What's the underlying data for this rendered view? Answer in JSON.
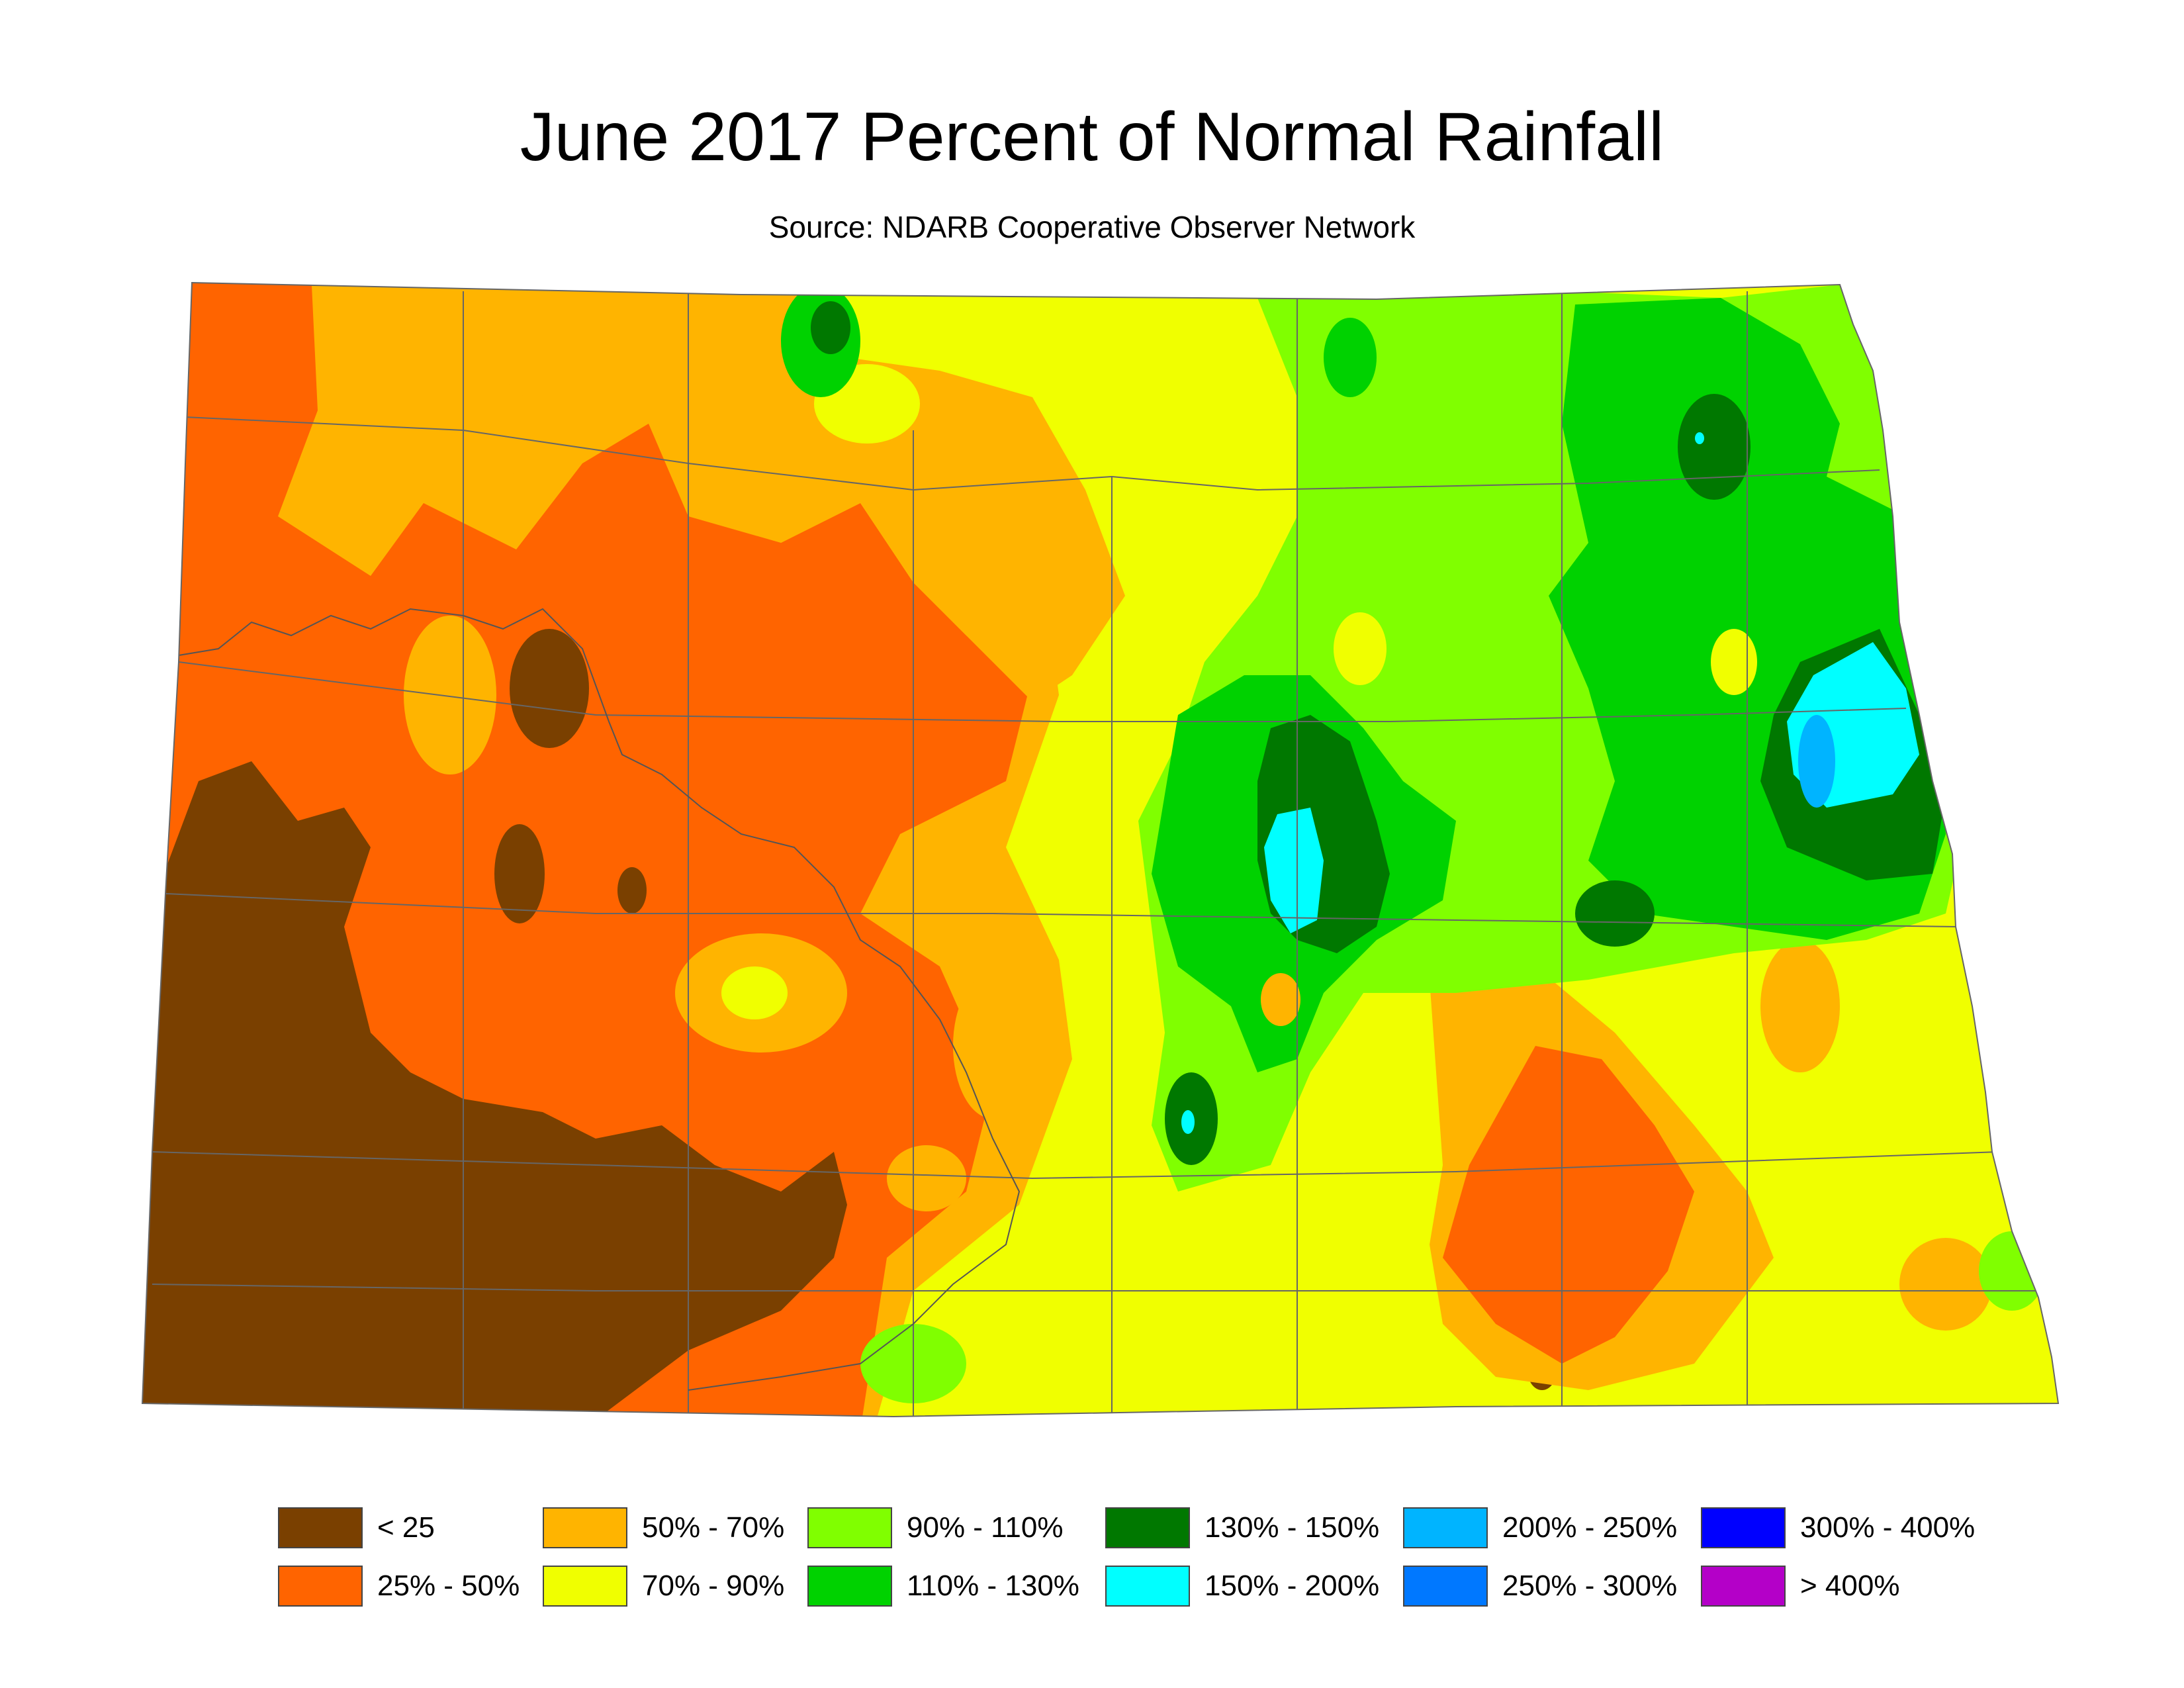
{
  "title": "June 2017 Percent of Normal Rainfall",
  "subtitle": "Source: NDARB Cooperative Observer Network",
  "legend": {
    "items": [
      {
        "label": "< 25",
        "color": "#7a4000"
      },
      {
        "label": "25% - 50%",
        "color": "#ff6400"
      },
      {
        "label": "50% - 70%",
        "color": "#ffb400"
      },
      {
        "label": "70% - 90%",
        "color": "#f0ff00"
      },
      {
        "label": "90% - 110%",
        "color": "#80ff00"
      },
      {
        "label": "110% - 130%",
        "color": "#00d200"
      },
      {
        "label": "130% - 150%",
        "color": "#007800"
      },
      {
        "label": "150% - 200%",
        "color": "#00ffff"
      },
      {
        "label": "200% - 250%",
        "color": "#00b4ff"
      },
      {
        "label": "250% - 300%",
        "color": "#0078ff"
      },
      {
        "label": "300% - 400%",
        "color": "#0000ff"
      },
      {
        "label": "> 400%",
        "color": "#b400c8"
      }
    ]
  }
}
